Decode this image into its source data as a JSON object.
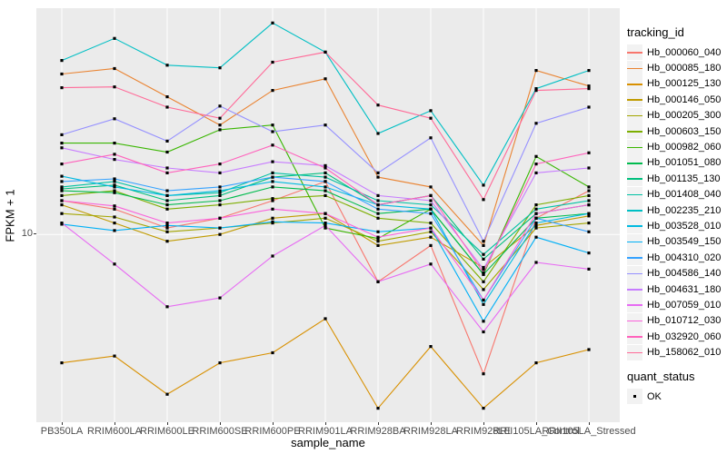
{
  "figure": {
    "x_axis": {
      "title": "sample_name"
    },
    "y_axis": {
      "title": "FPKM + 1",
      "tick_labels": [
        "10"
      ]
    },
    "colors": {
      "panel_bg": "#EBEBEB",
      "grid": "#FFFFFF",
      "point": "#000000",
      "axis_text": "#4D4D4D",
      "legend_key_bg": "#F2F2F2"
    }
  },
  "legend": {
    "tracking": {
      "title": "tracking_id"
    },
    "quant": {
      "title": "quant_status",
      "entries": [
        {
          "label": "OK",
          "marker": "black-square"
        }
      ]
    }
  },
  "chart_data": {
    "type": "line",
    "title": "",
    "xlabel": "sample_name",
    "ylabel": "FPKM + 1",
    "y_scale": "log10",
    "ylim": [
      2.43,
      55
    ],
    "y_ticks": [
      10
    ],
    "grid": true,
    "legend_position": "right",
    "marker": "black-square",
    "x_categories": [
      "PB350LA",
      "RRIM600LA",
      "RRIM600LE",
      "RRIM600SE",
      "RRIM600PE",
      "RRIM901LA",
      "RRIM928BA",
      "RRIM928LA",
      "RRIM928LE",
      "RRII105LA_Control",
      "RRII105LA_Stressed"
    ],
    "series": [
      {
        "name": "Hb_000060_040",
        "color": "#F8766D",
        "values": [
          12.9,
          12.1,
          10.5,
          11.3,
          12.9,
          14.9,
          7.0,
          9.2,
          3.5,
          11.3,
          13.9
        ]
      },
      {
        "name": "Hb_000085_180",
        "color": "#EA8331",
        "values": [
          33.5,
          34.9,
          28.2,
          22.8,
          29.6,
          32.3,
          15.4,
          14.3,
          9.2,
          34.4,
          30.6
        ]
      },
      {
        "name": "Hb_000125_130",
        "color": "#D89000",
        "values": [
          3.8,
          4.0,
          3.0,
          3.8,
          4.1,
          5.3,
          2.7,
          4.3,
          2.7,
          3.8,
          4.2
        ]
      },
      {
        "name": "Hb_000146_050",
        "color": "#C09B00",
        "values": [
          12.5,
          10.9,
          9.5,
          10.0,
          11.3,
          11.7,
          9.2,
          9.8,
          7.8,
          10.7,
          11.5
        ]
      },
      {
        "name": "Hb_000205_300",
        "color": "#A3A500",
        "values": [
          11.7,
          11.4,
          10.2,
          10.5,
          10.9,
          11.3,
          9.5,
          10.2,
          6.6,
          10.5,
          10.9
        ]
      },
      {
        "name": "Hb_000603_150",
        "color": "#7CAE00",
        "values": [
          13.4,
          13.9,
          12.1,
          12.5,
          13.1,
          13.4,
          11.3,
          10.9,
          7.0,
          12.5,
          13.4
        ]
      },
      {
        "name": "Hb_000982_060",
        "color": "#39B600",
        "values": [
          19.9,
          19.9,
          18.6,
          22.0,
          22.8,
          10.5,
          9.7,
          12.1,
          7.4,
          18.0,
          14.3
        ]
      },
      {
        "name": "Hb_001051_080",
        "color": "#00BB4E",
        "values": [
          13.9,
          13.7,
          12.5,
          12.9,
          14.3,
          13.9,
          11.7,
          12.1,
          7.4,
          11.3,
          11.7
        ]
      },
      {
        "name": "Hb_001135_130",
        "color": "#00BF7D",
        "values": [
          14.1,
          14.5,
          12.9,
          13.4,
          15.4,
          15.9,
          12.5,
          13.4,
          8.3,
          11.7,
          12.5
        ]
      },
      {
        "name": "Hb_001408_040",
        "color": "#00C1A3",
        "values": [
          14.3,
          14.9,
          13.4,
          13.7,
          15.9,
          15.4,
          12.9,
          12.5,
          8.6,
          12.1,
          12.9
        ]
      },
      {
        "name": "Hb_002235_210",
        "color": "#00BFC4",
        "values": [
          37.1,
          43.8,
          35.8,
          35.1,
          49.2,
          39.5,
          21.4,
          25.4,
          14.5,
          30.0,
          34.4
        ]
      },
      {
        "name": "Hb_003528_010",
        "color": "#00BAE0",
        "values": [
          15.5,
          14.3,
          13.4,
          13.9,
          14.9,
          14.3,
          12.5,
          12.1,
          5.9,
          10.9,
          11.7
        ]
      },
      {
        "name": "Hb_003549_150",
        "color": "#00B0F6",
        "values": [
          10.8,
          10.3,
          10.7,
          10.5,
          11.0,
          10.9,
          10.2,
          10.5,
          5.2,
          9.8,
          8.7
        ]
      },
      {
        "name": "Hb_004310_020",
        "color": "#35A2FF",
        "values": [
          14.9,
          15.2,
          13.9,
          14.3,
          15.4,
          14.9,
          12.1,
          11.7,
          6.1,
          11.3,
          10.2
        ]
      },
      {
        "name": "Hb_004586_140",
        "color": "#9590FF",
        "values": [
          21.2,
          23.9,
          20.2,
          26.3,
          21.7,
          22.8,
          15.9,
          20.7,
          9.5,
          23.1,
          26.1
        ]
      },
      {
        "name": "Hb_004631_180",
        "color": "#C77CFF",
        "values": [
          19.2,
          17.6,
          16.5,
          15.9,
          17.3,
          16.8,
          13.4,
          12.9,
          7.7,
          15.9,
          16.5
        ]
      },
      {
        "name": "Hb_007059_010",
        "color": "#E76BF3",
        "values": [
          10.9,
          8.0,
          5.8,
          6.2,
          8.5,
          10.7,
          7.0,
          8.0,
          4.8,
          8.1,
          7.7
        ]
      },
      {
        "name": "Hb_010712_030",
        "color": "#FA62DB",
        "values": [
          12.9,
          12.4,
          10.9,
          11.3,
          12.1,
          11.7,
          9.8,
          10.5,
          6.1,
          11.7,
          12.5
        ]
      },
      {
        "name": "Hb_032920_060",
        "color": "#FF62BC",
        "values": [
          17.0,
          18.3,
          15.9,
          17.0,
          19.6,
          16.5,
          12.5,
          13.4,
          7.5,
          17.0,
          18.5
        ]
      },
      {
        "name": "Hb_158062_010",
        "color": "#FF6A98",
        "values": [
          30.2,
          30.4,
          26.1,
          24.0,
          36.6,
          39.5,
          26.5,
          24.0,
          13.0,
          29.6,
          30.0
        ]
      }
    ]
  }
}
